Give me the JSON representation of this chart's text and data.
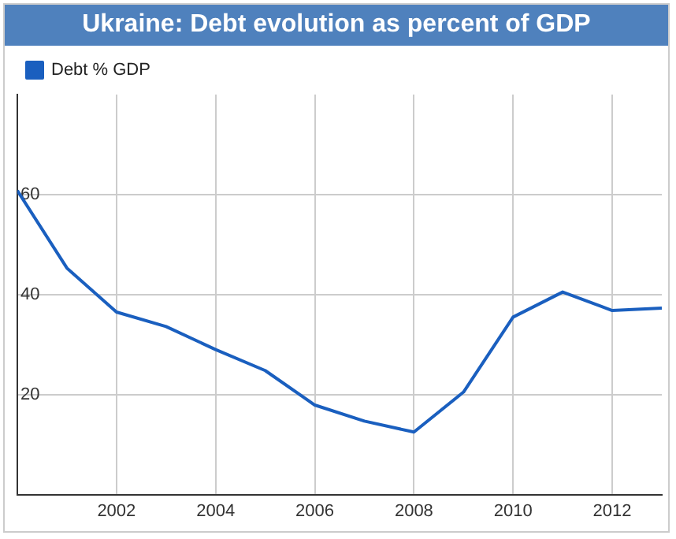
{
  "chart_data": {
    "type": "line",
    "title": "Ukraine: Debt evolution as percent of GDP",
    "x": [
      2000,
      2001,
      2002,
      2003,
      2004,
      2005,
      2006,
      2007,
      2008,
      2009,
      2010,
      2011,
      2012,
      2013
    ],
    "series": [
      {
        "name": "Debt % GDP",
        "color": "#1a5fbf",
        "values": [
          60.8,
          45.3,
          36.5,
          33.6,
          29,
          24.8,
          17.9,
          14.7,
          12.5,
          20.5,
          35.5,
          40.5,
          36.8,
          37.3
        ]
      }
    ],
    "xlim": [
      2000,
      2013
    ],
    "xticks": [
      2002,
      2004,
      2006,
      2008,
      2010,
      2012
    ],
    "ylim": [
      0,
      80
    ],
    "yticks": [
      20,
      40,
      60
    ],
    "grid": true,
    "legend": "top left",
    "marker": "none",
    "line_style": "solid"
  }
}
